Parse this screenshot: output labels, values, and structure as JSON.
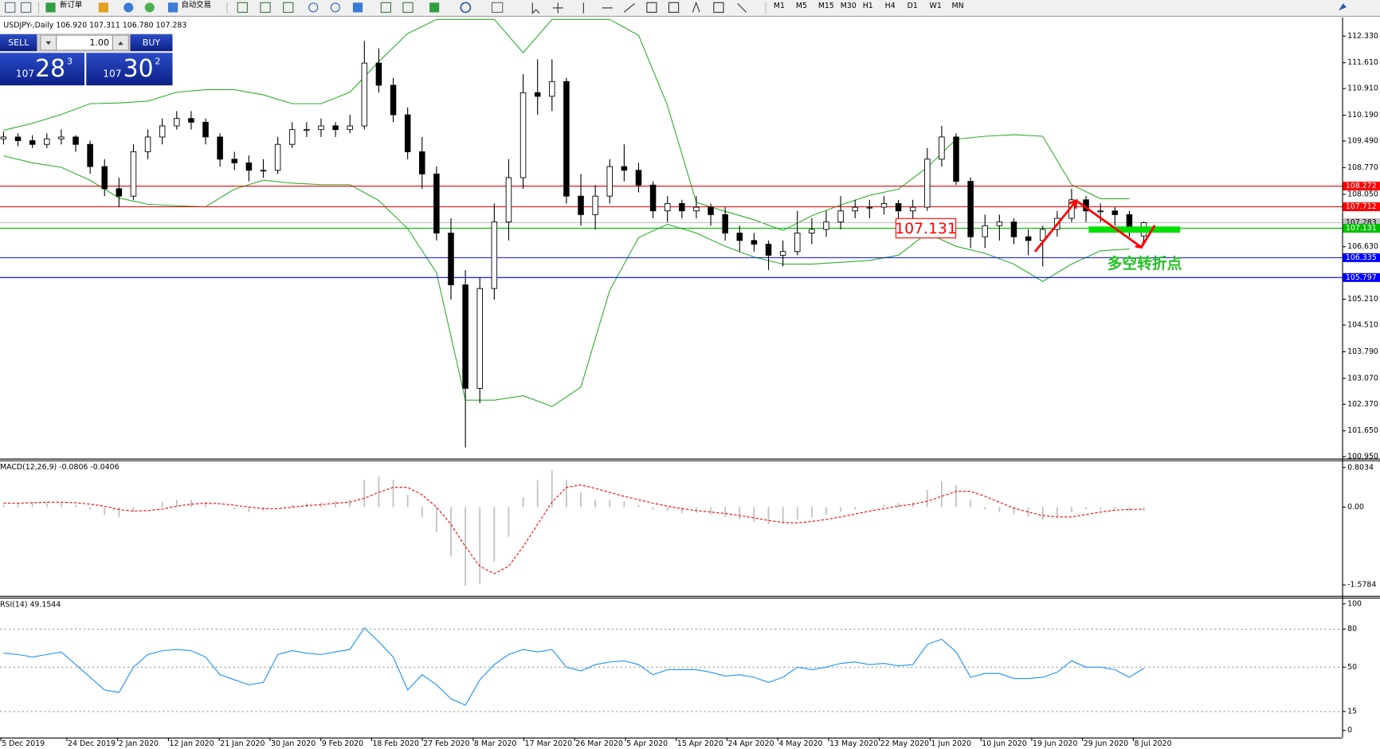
{
  "toolbar": {
    "new_order": "新订单",
    "auto_trading": "自动交易",
    "timeframes": [
      "M1",
      "M5",
      "M15",
      "M30",
      "H1",
      "H4",
      "D1",
      "W1",
      "MN"
    ]
  },
  "trade_panel": {
    "sell": "SELL",
    "buy": "BUY",
    "lots": "1.00",
    "bid_big": "107",
    "bid_main": "28",
    "bid_small": "3",
    "ask_big": "107",
    "ask_main": "30",
    "ask_small": "2"
  },
  "x_axis": {
    "labels": [
      "5 Dec 2019",
      "24 Dec 2019",
      "2 Jan 2020",
      "12 Jan 2020",
      "21 Jan 2020",
      "30 Jan 2020",
      "9 Feb 2020",
      "18 Feb 2020",
      "27 Feb 2020",
      "8 Mar 2020",
      "17 Mar 2020",
      "26 Mar 2020",
      "5 Apr 2020",
      "15 Apr 2020",
      "24 Apr 2020",
      "4 May 2020",
      "13 May 2020",
      "22 May 2020",
      "1 Jun 2020",
      "10 Jun 2020",
      "19 Jun 2020",
      "29 Jun 2020",
      "8 Jul 2020"
    ]
  },
  "chart_data": [
    {
      "type": "candlestick",
      "title": "USDJPY-,Daily 106.920 107.311 106.780 107.283",
      "annotation": "多空转折点",
      "ohlc": [
        [
          109.55,
          109.75,
          109.4,
          109.6
        ],
        [
          109.6,
          109.7,
          109.35,
          109.5
        ],
        [
          109.5,
          109.65,
          109.3,
          109.4
        ],
        [
          109.4,
          109.7,
          109.3,
          109.55
        ],
        [
          109.55,
          109.8,
          109.4,
          109.6
        ],
        [
          109.6,
          109.65,
          109.2,
          109.4
        ],
        [
          109.4,
          109.5,
          108.6,
          108.8
        ],
        [
          108.8,
          109.0,
          108.0,
          108.2
        ],
        [
          108.2,
          108.5,
          107.7,
          108.0
        ],
        [
          108.0,
          109.4,
          107.9,
          109.2
        ],
        [
          109.2,
          109.8,
          109.0,
          109.6
        ],
        [
          109.6,
          110.1,
          109.4,
          109.9
        ],
        [
          109.9,
          110.3,
          109.8,
          110.1
        ],
        [
          110.1,
          110.3,
          109.8,
          110.0
        ],
        [
          110.0,
          110.1,
          109.4,
          109.6
        ],
        [
          109.6,
          109.7,
          108.8,
          109.0
        ],
        [
          109.0,
          109.2,
          108.7,
          108.9
        ],
        [
          108.9,
          109.1,
          108.4,
          108.7
        ],
        [
          108.7,
          109.0,
          108.5,
          108.7
        ],
        [
          108.7,
          109.6,
          108.6,
          109.4
        ],
        [
          109.4,
          110.0,
          109.3,
          109.8
        ],
        [
          109.8,
          110.0,
          109.6,
          109.8
        ],
        [
          109.8,
          110.1,
          109.6,
          109.9
        ],
        [
          109.9,
          110.0,
          109.6,
          109.8
        ],
        [
          109.8,
          110.2,
          109.7,
          109.9
        ],
        [
          109.9,
          112.2,
          109.8,
          111.6
        ],
        [
          111.6,
          112.0,
          110.8,
          111.0
        ],
        [
          111.0,
          111.2,
          110.0,
          110.2
        ],
        [
          110.2,
          110.4,
          109.0,
          109.2
        ],
        [
          109.2,
          109.6,
          108.2,
          108.6
        ],
        [
          108.6,
          108.8,
          106.8,
          107.0
        ],
        [
          107.0,
          107.4,
          105.2,
          105.6
        ],
        [
          105.6,
          106.0,
          101.2,
          102.8
        ],
        [
          102.8,
          105.8,
          102.4,
          105.5
        ],
        [
          105.5,
          107.8,
          105.2,
          107.3
        ],
        [
          107.3,
          109.0,
          106.8,
          108.5
        ],
        [
          108.5,
          111.3,
          108.2,
          110.8
        ],
        [
          110.8,
          111.7,
          110.2,
          110.7
        ],
        [
          110.7,
          111.7,
          110.3,
          111.1
        ],
        [
          111.1,
          111.2,
          107.8,
          108.0
        ],
        [
          108.0,
          108.6,
          107.2,
          107.5
        ],
        [
          107.5,
          108.3,
          107.1,
          108.0
        ],
        [
          108.0,
          109.0,
          107.8,
          108.8
        ],
        [
          108.8,
          109.4,
          108.4,
          108.7
        ],
        [
          108.7,
          108.9,
          108.1,
          108.3
        ],
        [
          108.3,
          108.4,
          107.4,
          107.6
        ],
        [
          107.6,
          108.0,
          107.3,
          107.8
        ],
        [
          107.8,
          107.9,
          107.4,
          107.6
        ],
        [
          107.6,
          108.0,
          107.4,
          107.7
        ],
        [
          107.7,
          107.8,
          107.2,
          107.5
        ],
        [
          107.5,
          107.7,
          106.8,
          107.0
        ],
        [
          107.0,
          107.2,
          106.5,
          106.8
        ],
        [
          106.8,
          107.0,
          106.5,
          106.7
        ],
        [
          106.7,
          106.8,
          106.0,
          106.4
        ],
        [
          106.4,
          106.8,
          106.1,
          106.5
        ],
        [
          106.5,
          107.6,
          106.4,
          107.0
        ],
        [
          107.0,
          107.4,
          106.7,
          107.1
        ],
        [
          107.1,
          107.6,
          106.9,
          107.3
        ],
        [
          107.3,
          108.0,
          107.1,
          107.6
        ],
        [
          107.6,
          107.9,
          107.4,
          107.7
        ],
        [
          107.7,
          107.9,
          107.4,
          107.7
        ],
        [
          107.7,
          108.0,
          107.5,
          107.8
        ],
        [
          107.8,
          107.9,
          107.3,
          107.6
        ],
        [
          107.6,
          107.9,
          107.4,
          107.7
        ],
        [
          107.7,
          109.3,
          107.6,
          109.0
        ],
        [
          109.0,
          109.9,
          108.8,
          109.6
        ],
        [
          109.6,
          109.7,
          108.3,
          108.4
        ],
        [
          108.4,
          108.5,
          106.6,
          106.9
        ],
        [
          106.9,
          107.5,
          106.6,
          107.2
        ],
        [
          107.2,
          107.5,
          106.8,
          107.3
        ],
        [
          107.3,
          107.4,
          106.7,
          106.9
        ],
        [
          106.9,
          107.1,
          106.4,
          106.8
        ],
        [
          106.8,
          107.2,
          106.1,
          107.1
        ],
        [
          107.1,
          107.6,
          106.9,
          107.4
        ],
        [
          107.4,
          108.2,
          107.3,
          107.9
        ],
        [
          107.9,
          108.0,
          107.3,
          107.6
        ],
        [
          107.6,
          107.8,
          107.3,
          107.6
        ],
        [
          107.6,
          107.7,
          107.2,
          107.5
        ],
        [
          107.5,
          107.6,
          106.9,
          107.1
        ],
        [
          106.92,
          107.311,
          106.78,
          107.283
        ]
      ],
      "bb_upper": [
        109.78,
        109.97,
        110.21,
        110.5,
        110.52,
        110.57,
        110.81,
        110.88,
        110.88,
        110.74,
        110.5,
        110.5,
        110.81,
        111.64,
        112.4,
        112.78,
        112.78,
        112.78,
        111.88,
        112.78,
        112.78,
        112.78,
        112.35,
        110.45,
        107.83,
        107.59,
        107.36,
        107.07,
        107.47,
        107.76,
        108.02,
        108.19,
        108.78,
        109.54,
        109.62,
        109.66,
        109.62,
        108.31,
        107.93,
        107.93
      ],
      "bb_lower": [
        109.09,
        108.9,
        108.78,
        108.43,
        107.95,
        107.78,
        107.74,
        107.71,
        108.19,
        108.43,
        108.35,
        108.31,
        108.31,
        107.88,
        107.12,
        105.93,
        102.48,
        102.48,
        102.6,
        102.31,
        102.83,
        105.45,
        106.88,
        107.24,
        107.0,
        106.64,
        106.35,
        106.16,
        106.16,
        106.21,
        106.26,
        106.4,
        107.0,
        106.64,
        106.45,
        106.16,
        105.69,
        106.16,
        106.52,
        106.57
      ],
      "bb_color": "#2fae2f",
      "levels": [
        {
          "value": 108.272,
          "label": "108.272",
          "color": "#ff0000",
          "text_color": "#ffffff"
        },
        {
          "value": 107.712,
          "label": "107.712",
          "color": "#ff0000",
          "text_color": "#ffffff"
        },
        {
          "value": 107.283,
          "label": "107.283",
          "color": "#c0c0c0",
          "text_color": "#000000"
        },
        {
          "value": 107.131,
          "label": "107.131",
          "color": "#00c000",
          "text_color": "#ffffff"
        },
        {
          "value": 106.335,
          "label": "106.335",
          "color": "#0000ff",
          "text_color": "#ffffff"
        },
        {
          "value": 105.797,
          "label": "105.797",
          "color": "#0000ff",
          "text_color": "#ffffff"
        }
      ],
      "ylim": [
        100.9,
        112.83
      ],
      "yticks": [
        {
          "value": 112.33,
          "label": "112.330"
        },
        {
          "value": 111.61,
          "label": "111.610"
        },
        {
          "value": 110.91,
          "label": "110.910"
        },
        {
          "value": 110.19,
          "label": "110.190"
        },
        {
          "value": 109.49,
          "label": "109.490"
        },
        {
          "value": 108.77,
          "label": "108.770"
        },
        {
          "value": 108.05,
          "label": "108.050"
        },
        {
          "value": 106.63,
          "label": "106.630"
        },
        {
          "value": 105.21,
          "label": "105.210"
        },
        {
          "value": 104.51,
          "label": "104.510"
        },
        {
          "value": 103.79,
          "label": "103.790"
        },
        {
          "value": 103.07,
          "label": "103.070"
        },
        {
          "value": 102.37,
          "label": "102.370"
        },
        {
          "value": 101.65,
          "label": "101.650"
        },
        {
          "value": 100.95,
          "label": "100.950"
        }
      ]
    },
    {
      "type": "macd",
      "title": "MACD(12,26,9) -0.0806 -0.0406",
      "hist_color": "#c0c0c0",
      "signal_color": "#ff0000",
      "histogram": [
        0.05,
        0.08,
        0.1,
        0.1,
        0.1,
        0.05,
        -0.05,
        -0.15,
        -0.2,
        -0.1,
        0.0,
        0.1,
        0.15,
        0.15,
        0.1,
        0.0,
        -0.05,
        -0.1,
        -0.08,
        0.0,
        0.05,
        0.08,
        0.1,
        0.12,
        0.15,
        0.55,
        0.62,
        0.55,
        0.25,
        -0.2,
        -0.5,
        -1.0,
        -1.6,
        -1.55,
        -1.1,
        -0.6,
        0.2,
        0.55,
        0.75,
        0.55,
        0.3,
        0.15,
        0.15,
        0.12,
        0.05,
        -0.05,
        -0.08,
        -0.12,
        -0.12,
        -0.15,
        -0.2,
        -0.25,
        -0.3,
        -0.35,
        -0.33,
        -0.25,
        -0.2,
        -0.15,
        -0.1,
        -0.05,
        0.0,
        0.05,
        0.08,
        0.1,
        0.35,
        0.52,
        0.45,
        0.15,
        -0.05,
        -0.1,
        -0.15,
        -0.2,
        -0.25,
        -0.2,
        -0.1,
        -0.05,
        -0.05,
        -0.05,
        -0.08,
        -0.0806
      ],
      "signal": [
        0.08,
        0.08,
        0.09,
        0.1,
        0.1,
        0.09,
        0.06,
        0.02,
        -0.05,
        -0.08,
        -0.07,
        -0.04,
        0.02,
        0.06,
        0.08,
        0.07,
        0.04,
        0.0,
        -0.03,
        -0.03,
        0.0,
        0.03,
        0.05,
        0.08,
        0.1,
        0.18,
        0.3,
        0.4,
        0.4,
        0.25,
        0.0,
        -0.35,
        -0.8,
        -1.2,
        -1.35,
        -1.2,
        -0.8,
        -0.35,
        0.1,
        0.4,
        0.45,
        0.38,
        0.3,
        0.22,
        0.15,
        0.08,
        0.02,
        -0.03,
        -0.07,
        -0.1,
        -0.13,
        -0.17,
        -0.22,
        -0.27,
        -0.31,
        -0.32,
        -0.29,
        -0.25,
        -0.2,
        -0.14,
        -0.08,
        -0.03,
        0.02,
        0.06,
        0.12,
        0.22,
        0.32,
        0.32,
        0.22,
        0.1,
        -0.02,
        -0.1,
        -0.17,
        -0.2,
        -0.2,
        -0.15,
        -0.1,
        -0.06,
        -0.05,
        -0.0406
      ],
      "ylim": [
        -1.8,
        0.95
      ],
      "yticks": [
        0.8034,
        {
          "value": 0,
          "label": "0.00"
        },
        -1.5784
      ]
    },
    {
      "type": "line",
      "title": "RSI(14) 49.1544",
      "color": "#1e90ff",
      "values": [
        61,
        60,
        58,
        60,
        62,
        52,
        42,
        32,
        30,
        50,
        60,
        63,
        64,
        63,
        58,
        44,
        40,
        36,
        38,
        60,
        63,
        61,
        60,
        62,
        64,
        81,
        70,
        58,
        32,
        44,
        36,
        25,
        20,
        40,
        52,
        60,
        64,
        62,
        64,
        50,
        47,
        52,
        54,
        55,
        52,
        44,
        48,
        48,
        48,
        46,
        43,
        44,
        42,
        38,
        42,
        50,
        48,
        50,
        53,
        54,
        52,
        53,
        51,
        52,
        68,
        72,
        62,
        42,
        45,
        45,
        41,
        41,
        42,
        46,
        55,
        50,
        50,
        48,
        42,
        49.1544
      ],
      "ylim": [
        -5.6,
        104.9
      ],
      "yticks": [
        100,
        80,
        50,
        15,
        0
      ]
    }
  ]
}
